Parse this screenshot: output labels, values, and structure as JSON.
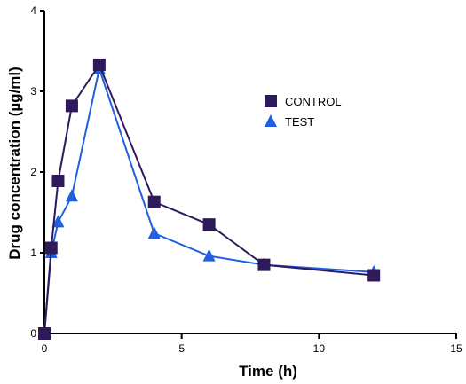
{
  "chart_data": {
    "type": "line",
    "title": "",
    "xlabel": "Time (h)",
    "ylabel": "Drug concentration (µg/ml)",
    "xlim": [
      0,
      15
    ],
    "ylim": [
      0,
      4
    ],
    "x_ticks": [
      0,
      5,
      10,
      15
    ],
    "y_ticks": [
      0,
      1,
      2,
      3,
      4
    ],
    "grid": false,
    "legend_position": "top-right",
    "series": [
      {
        "name": "CONTROL",
        "marker": "square",
        "color": "#2e1a5a",
        "x": [
          0,
          0.25,
          0.5,
          1,
          2,
          4,
          6,
          8,
          12
        ],
        "y": [
          0,
          1.06,
          1.89,
          2.82,
          3.33,
          1.63,
          1.35,
          0.85,
          0.72
        ]
      },
      {
        "name": "TEST",
        "marker": "triangle",
        "color": "#1f5fe0",
        "x": [
          0,
          0.25,
          0.5,
          1,
          2,
          4,
          6,
          8,
          12
        ],
        "y": [
          0,
          1.0,
          1.38,
          1.7,
          3.28,
          1.24,
          0.96,
          0.85,
          0.76
        ]
      }
    ]
  }
}
